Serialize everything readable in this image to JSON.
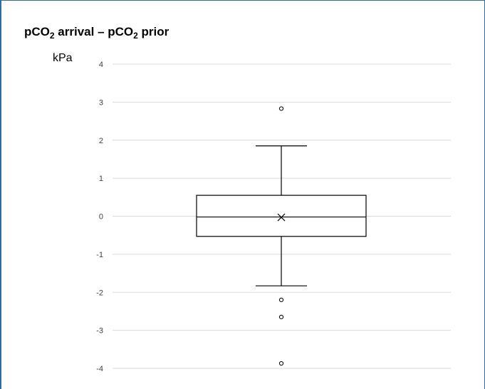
{
  "chart_data": {
    "type": "boxplot",
    "title": {
      "prefix": "pCO",
      "sub1": "2",
      "middle": " arrival – pCO",
      "sub2": "2",
      "suffix": " prior"
    },
    "ylabel": "kPa",
    "ylim": [
      -4,
      4
    ],
    "yticks": [
      {
        "value": 4,
        "label": "4"
      },
      {
        "value": 3,
        "label": "3"
      },
      {
        "value": 2,
        "label": "2"
      },
      {
        "value": 1,
        "label": "1"
      },
      {
        "value": 0,
        "label": "0"
      },
      {
        "value": -1,
        "label": "-1"
      },
      {
        "value": -2,
        "label": "-2"
      },
      {
        "value": -3,
        "label": "-3"
      },
      {
        "value": -4,
        "label": "-4"
      }
    ],
    "grid": true,
    "box": {
      "whisker_high": 1.85,
      "q3": 0.55,
      "median": -0.02,
      "mean": -0.03,
      "q1": -0.53,
      "whisker_low": -1.83
    },
    "outliers": [
      2.83,
      -2.2,
      -2.65,
      -3.87
    ]
  },
  "colors": {
    "grid": "#d9d9d9",
    "box": "#000000",
    "tick_text": "#404040",
    "frame": "#2e6da4"
  }
}
